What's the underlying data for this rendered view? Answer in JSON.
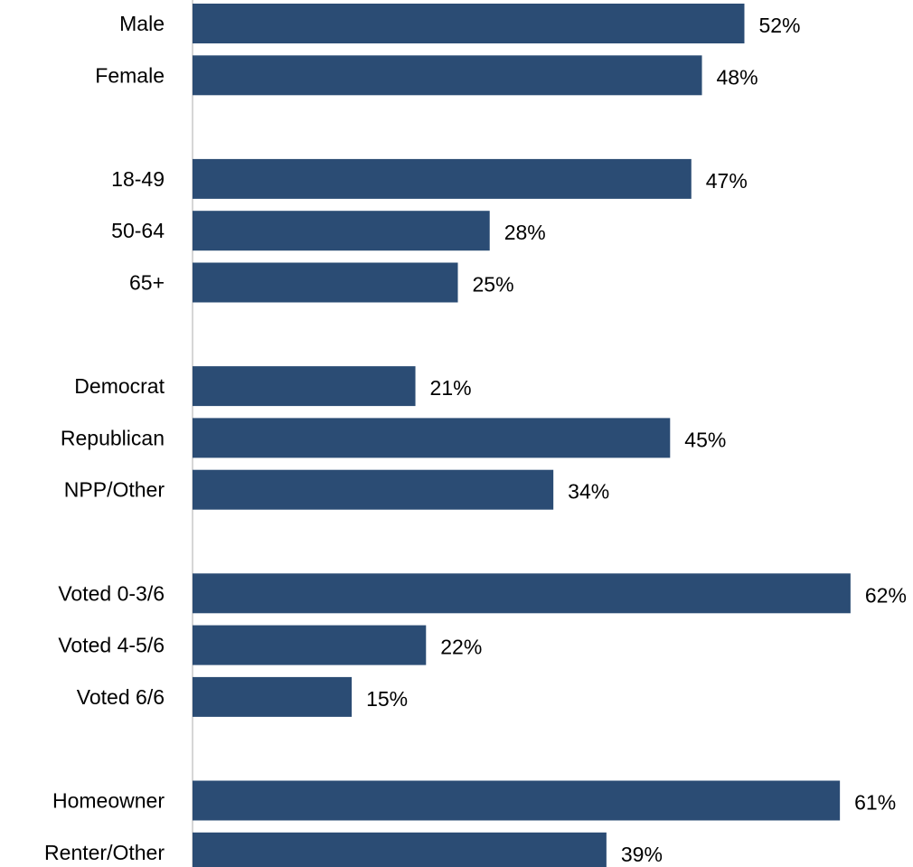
{
  "chart_data": {
    "type": "bar",
    "orientation": "horizontal",
    "title": "",
    "xlabel": "",
    "ylabel": "",
    "value_suffix": "%",
    "xlim": [
      0,
      62
    ],
    "grid": false,
    "legend": "none",
    "bar_color": "#2b4c74",
    "axis_color": "#c8c8c8",
    "groups": [
      {
        "categories": [
          "Male",
          "Female"
        ],
        "values": [
          52,
          48
        ]
      },
      {
        "categories": [
          "18-49",
          "50-64",
          "65+"
        ],
        "values": [
          47,
          28,
          25
        ]
      },
      {
        "categories": [
          "Democrat",
          "Republican",
          "NPP/Other"
        ],
        "values": [
          21,
          45,
          34
        ]
      },
      {
        "categories": [
          "Voted 0-3/6",
          "Voted 4-5/6",
          "Voted 6/6"
        ],
        "values": [
          62,
          22,
          15
        ]
      },
      {
        "categories": [
          "Homeowner",
          "Renter/Other"
        ],
        "values": [
          61,
          39
        ]
      }
    ]
  }
}
